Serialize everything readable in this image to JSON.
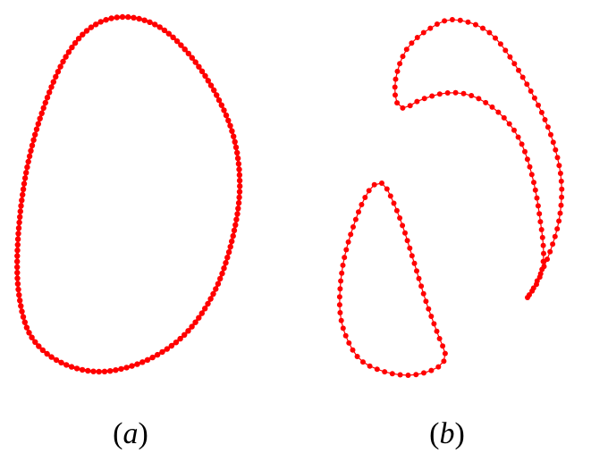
{
  "colors": {
    "curve": "#ff0000",
    "background": "#ffffff",
    "text": "#000000"
  },
  "panels": [
    {
      "id": "a",
      "caption": "(a)",
      "caption_open": "(",
      "caption_letter": "a",
      "caption_close": ")"
    },
    {
      "id": "b",
      "caption": "(b)",
      "caption_open": "(",
      "caption_letter": "b",
      "caption_close": ")"
    }
  ]
}
